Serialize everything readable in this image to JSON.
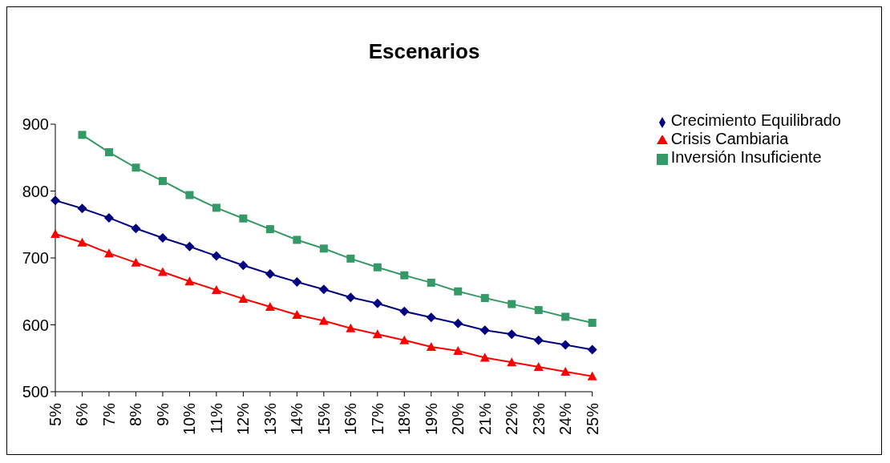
{
  "chart_data": {
    "type": "line",
    "title": "Escenarios",
    "categories": [
      "5%",
      "6%",
      "7%",
      "8%",
      "9%",
      "10%",
      "11%",
      "12%",
      "13%",
      "14%",
      "15%",
      "16%",
      "17%",
      "18%",
      "19%",
      "20%",
      "21%",
      "22%",
      "23%",
      "24%",
      "25%"
    ],
    "series": [
      {
        "name": "Crecimiento Equilibrado",
        "color": "#000080",
        "marker": "diamond",
        "values": [
          786,
          774,
          760,
          744,
          730,
          717,
          703,
          689,
          676,
          664,
          653,
          641,
          632,
          620,
          611,
          602,
          592,
          586,
          577,
          570,
          563
        ]
      },
      {
        "name": "Inversión Insuficiente",
        "color": "#339966",
        "marker": "square",
        "values": [
          null,
          884,
          858,
          835,
          815,
          794,
          775,
          759,
          743,
          727,
          714,
          699,
          686,
          674,
          663,
          650,
          640,
          631,
          622,
          612,
          603
        ]
      },
      {
        "name": "Crisis Cambiaria",
        "color": "#ff0000",
        "marker": "triangle",
        "values": [
          736,
          723,
          707,
          693,
          679,
          665,
          652,
          639,
          627,
          615,
          606,
          595,
          586,
          577,
          567,
          561,
          551,
          544,
          537,
          530,
          523
        ]
      }
    ],
    "ylim": [
      500,
      900
    ],
    "yticks": [
      500,
      600,
      700,
      800,
      900
    ],
    "grid": false,
    "legend": "top right",
    "line_style": "solid"
  }
}
